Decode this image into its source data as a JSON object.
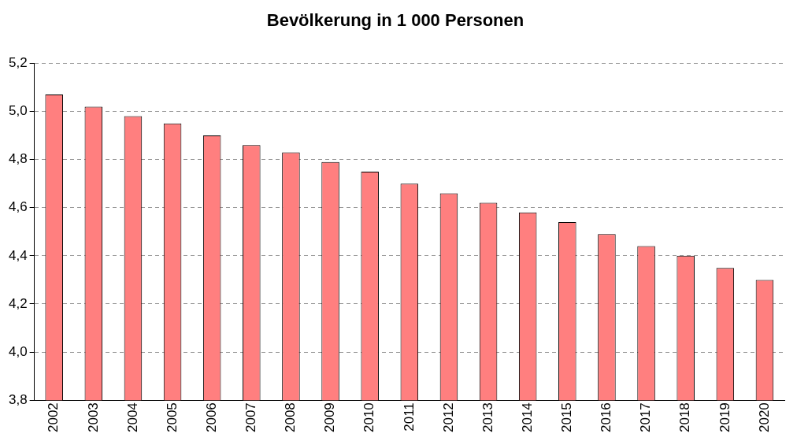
{
  "chart_data": {
    "type": "bar",
    "title": "Bevölkerung in 1 000 Personen",
    "categories": [
      "2002",
      "2003",
      "2004",
      "2005",
      "2006",
      "2007",
      "2008",
      "2009",
      "2010",
      "2011",
      "2012",
      "2013",
      "2014",
      "2015",
      "2016",
      "2017",
      "2018",
      "2019",
      "2020"
    ],
    "values": [
      5.07,
      5.02,
      4.98,
      4.95,
      4.9,
      4.86,
      4.83,
      4.79,
      4.75,
      4.7,
      4.66,
      4.62,
      4.58,
      4.54,
      4.49,
      4.44,
      4.4,
      4.35,
      4.3
    ],
    "color": "#ff7f7f",
    "ylim": [
      3.8,
      5.2
    ],
    "yticks": [
      {
        "value": 3.8,
        "label": "3,8"
      },
      {
        "value": 4.0,
        "label": "4,0"
      },
      {
        "value": 4.2,
        "label": "4,2"
      },
      {
        "value": 4.4,
        "label": "4,4"
      },
      {
        "value": 4.6,
        "label": "4,6"
      },
      {
        "value": 4.8,
        "label": "4,8"
      },
      {
        "value": 5.0,
        "label": "5,0"
      },
      {
        "value": 5.2,
        "label": "5,2"
      }
    ],
    "grid": "y"
  }
}
